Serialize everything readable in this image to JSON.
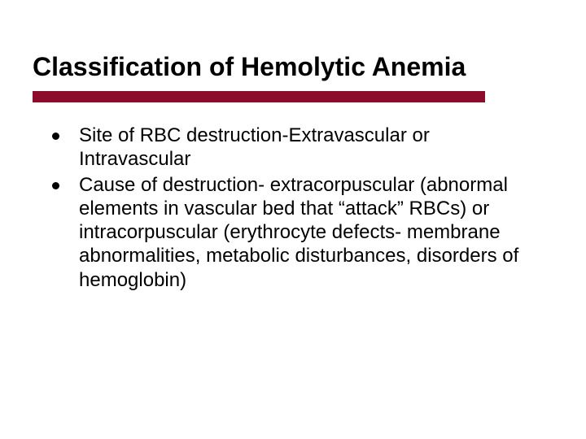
{
  "slide": {
    "title": "Classification of Hemolytic Anemia",
    "title_fontsize": 32,
    "title_color": "#000000",
    "underline_color": "#8b0c2b",
    "underline_height": 14,
    "underline_width": 556,
    "background_color": "#ffffff",
    "bullets": [
      {
        "text": "Site of RBC destruction-Extravascular or Intravascular"
      },
      {
        "text": "Cause of destruction- extracorpuscular (abnormal elements in vascular bed that “attack” RBCs) or intracorpuscular (erythrocyte defects- membrane abnormalities, metabolic disturbances, disorders of hemoglobin)"
      }
    ],
    "bullet_fontsize": 24,
    "bullet_color": "#000000",
    "bullet_dot_color": "#000000"
  }
}
